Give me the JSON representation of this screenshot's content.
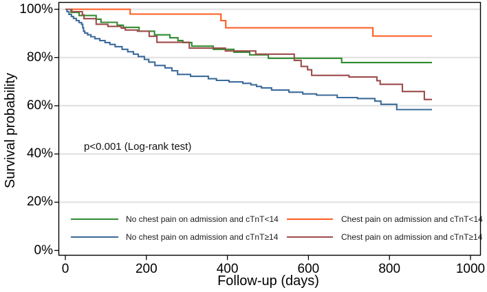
{
  "chart_data": {
    "type": "line",
    "subtype": "kaplan-meier-step",
    "title": "",
    "xlabel": "Follow-up (days)",
    "ylabel": "Survival probability",
    "xlim": [
      0,
      1000
    ],
    "ylim": [
      0,
      100
    ],
    "x_ticks": [
      0,
      200,
      400,
      600,
      800,
      1000
    ],
    "x_tick_labels": [
      "0",
      "200",
      "400",
      "600",
      "800",
      "1000"
    ],
    "y_ticks": [
      0,
      20,
      40,
      60,
      80,
      100
    ],
    "y_tick_labels": [
      "0%",
      "20%",
      "40%",
      "60%",
      "80%",
      "100%"
    ],
    "grid": "horizontal gridlines at 20/40/60/80/100%",
    "legend_position": "inside plot, bottom, two columns",
    "annotation": {
      "text": "p<0.001 (Log-rank test)",
      "x_day": 46,
      "y_pct": 42
    },
    "frame_color": "#000000",
    "grid_color": "#e2e2e2",
    "series": [
      {
        "name": "No chest pain on admission and cTnT<14",
        "color": "#2f8b2f",
        "points": [
          [
            0,
            100
          ],
          [
            14,
            98.7
          ],
          [
            34,
            97.4
          ],
          [
            76,
            95.9
          ],
          [
            88,
            94.6
          ],
          [
            128,
            93.4
          ],
          [
            143,
            92.5
          ],
          [
            182,
            90.9
          ],
          [
            220,
            89.4
          ],
          [
            258,
            88.2
          ],
          [
            278,
            87.0
          ],
          [
            290,
            86.2
          ],
          [
            312,
            84.7
          ],
          [
            365,
            83.4
          ],
          [
            416,
            82.2
          ],
          [
            455,
            81.1
          ],
          [
            501,
            79.7
          ],
          [
            682,
            77.9
          ],
          [
            905,
            77.9
          ]
        ]
      },
      {
        "name": "No chest pain on admission and cTnT≥14",
        "color": "#3b6a99",
        "points": [
          [
            0,
            100
          ],
          [
            4,
            99.0
          ],
          [
            9,
            97.9
          ],
          [
            15,
            97.0
          ],
          [
            20,
            96.2
          ],
          [
            27,
            95.3
          ],
          [
            34,
            94.5
          ],
          [
            40,
            93.8
          ],
          [
            43,
            92.3
          ],
          [
            45,
            90.9
          ],
          [
            48,
            90.1
          ],
          [
            55,
            89.4
          ],
          [
            63,
            88.6
          ],
          [
            73,
            87.8
          ],
          [
            85,
            87.0
          ],
          [
            98,
            86.2
          ],
          [
            110,
            85.4
          ],
          [
            123,
            84.5
          ],
          [
            140,
            83.4
          ],
          [
            154,
            82.4
          ],
          [
            168,
            81.4
          ],
          [
            180,
            80.4
          ],
          [
            195,
            79.2
          ],
          [
            206,
            78.1
          ],
          [
            221,
            76.7
          ],
          [
            246,
            75.7
          ],
          [
            263,
            74.5
          ],
          [
            277,
            73.0
          ],
          [
            309,
            72.2
          ],
          [
            353,
            71.2
          ],
          [
            373,
            70.5
          ],
          [
            404,
            69.9
          ],
          [
            438,
            69.3
          ],
          [
            458,
            68.7
          ],
          [
            472,
            68.0
          ],
          [
            484,
            67.4
          ],
          [
            509,
            66.5
          ],
          [
            552,
            65.6
          ],
          [
            586,
            64.9
          ],
          [
            620,
            64.4
          ],
          [
            671,
            63.4
          ],
          [
            721,
            63.0
          ],
          [
            764,
            61.9
          ],
          [
            779,
            60.6
          ],
          [
            818,
            58.4
          ],
          [
            905,
            58.4
          ]
        ]
      },
      {
        "name": "Chest pain on admission and cTnT<14",
        "color": "#ff5a1f",
        "points": [
          [
            0,
            100
          ],
          [
            160,
            98.0
          ],
          [
            384,
            95.3
          ],
          [
            396,
            92.3
          ],
          [
            759,
            88.9
          ],
          [
            905,
            88.9
          ]
        ]
      },
      {
        "name": "Chest pain on admission and cTnT≥14",
        "color": "#9d4b4b",
        "points": [
          [
            0,
            100
          ],
          [
            16,
            99.0
          ],
          [
            42,
            97.7
          ],
          [
            46,
            96.1
          ],
          [
            76,
            93.8
          ],
          [
            105,
            92.9
          ],
          [
            138,
            92.2
          ],
          [
            148,
            91.4
          ],
          [
            178,
            90.9
          ],
          [
            207,
            88.8
          ],
          [
            226,
            86.3
          ],
          [
            306,
            83.9
          ],
          [
            395,
            82.7
          ],
          [
            470,
            81.4
          ],
          [
            565,
            78.8
          ],
          [
            582,
            76.3
          ],
          [
            598,
            74.9
          ],
          [
            608,
            72.6
          ],
          [
            700,
            71.9
          ],
          [
            769,
            70.4
          ],
          [
            777,
            68.9
          ],
          [
            832,
            65.9
          ],
          [
            886,
            62.6
          ],
          [
            905,
            62.6
          ]
        ]
      }
    ]
  }
}
